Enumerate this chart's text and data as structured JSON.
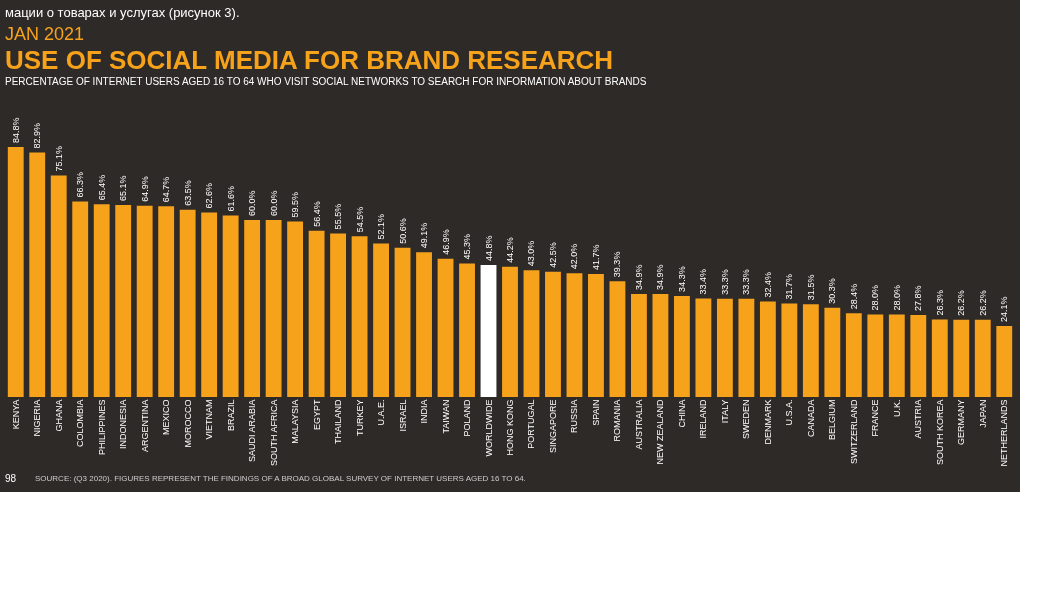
{
  "chart_data": {
    "type": "bar",
    "title": "USE OF SOCIAL MEDIA FOR BRAND RESEARCH",
    "subtitle": "PERCENTAGE OF INTERNET USERS AGED 16 TO 64 WHO VISIT SOCIAL NETWORKS TO SEARCH FOR INFORMATION ABOUT BRANDS",
    "categories": [
      "KENYA",
      "NIGERIA",
      "GHANA",
      "COLOMBIA",
      "PHILIPPINES",
      "INDONESIA",
      "ARGENTINA",
      "MEXICO",
      "MOROCCO",
      "VIETNAM",
      "BRAZIL",
      "SAUDI ARABIA",
      "SOUTH AFRICA",
      "MALAYSIA",
      "EGYPT",
      "THAILAND",
      "TURKEY",
      "U.A.E.",
      "ISRAEL",
      "INDIA",
      "TAIWAN",
      "POLAND",
      "WORLDWIDE",
      "HONG KONG",
      "PORTUGAL",
      "SINGAPORE",
      "RUSSIA",
      "SPAIN",
      "ROMANIA",
      "AUSTRALIA",
      "NEW ZEALAND",
      "CHINA",
      "IRELAND",
      "ITALY",
      "SWEDEN",
      "DENMARK",
      "U.S.A.",
      "CANADA",
      "BELGIUM",
      "SWITZERLAND",
      "FRANCE",
      "U.K.",
      "AUSTRIA",
      "SOUTH KOREA",
      "GERMANY",
      "JAPAN",
      "NETHERLANDS"
    ],
    "values": [
      84.8,
      82.9,
      75.1,
      66.3,
      65.4,
      65.1,
      64.9,
      64.7,
      63.5,
      62.6,
      61.6,
      60.0,
      60.0,
      59.5,
      56.4,
      55.5,
      54.5,
      52.1,
      50.6,
      49.1,
      46.9,
      45.3,
      44.8,
      44.2,
      43.0,
      42.5,
      42.0,
      41.7,
      39.3,
      34.9,
      34.9,
      34.3,
      33.4,
      33.3,
      33.3,
      32.4,
      31.7,
      31.5,
      30.3,
      28.4,
      28.0,
      28.0,
      27.8,
      26.3,
      26.2,
      26.2,
      24.1
    ],
    "value_labels": [
      "84.8%",
      "82.9%",
      "75.1%",
      "66.3%",
      "65.4%",
      "65.1%",
      "64.9%",
      "64.7%",
      "63.5%",
      "62.6%",
      "61.6%",
      "60.0%",
      "60.0%",
      "59.5%",
      "56.4%",
      "55.5%",
      "54.5%",
      "52.1%",
      "50.6%",
      "49.1%",
      "46.9%",
      "45.3%",
      "44.8%",
      "44.2%",
      "43.0%",
      "42.5%",
      "42.0%",
      "41.7%",
      "39.3%",
      "34.9%",
      "34.9%",
      "34.3%",
      "33.4%",
      "33.3%",
      "33.3%",
      "32.4%",
      "31.7%",
      "31.5%",
      "30.3%",
      "28.4%",
      "28.0%",
      "28.0%",
      "27.8%",
      "26.3%",
      "26.2%",
      "26.2%",
      "24.1%"
    ],
    "colors": [
      "#f7a21b",
      "#f7a21b",
      "#f7a21b",
      "#f7a21b",
      "#f7a21b",
      "#f7a21b",
      "#f7a21b",
      "#f7a21b",
      "#f7a21b",
      "#f7a21b",
      "#f7a21b",
      "#f7a21b",
      "#f7a21b",
      "#f7a21b",
      "#f7a21b",
      "#f7a21b",
      "#f7a21b",
      "#f7a21b",
      "#f7a21b",
      "#f7a21b",
      "#f7a21b",
      "#f7a21b",
      "#ffffff",
      "#f7a21b",
      "#f7a21b",
      "#f7a21b",
      "#f7a21b",
      "#f7a21b",
      "#f7a21b",
      "#f7a21b",
      "#f7a21b",
      "#f7a21b",
      "#f7a21b",
      "#f7a21b",
      "#f7a21b",
      "#f7a21b",
      "#f7a21b",
      "#f7a21b",
      "#f7a21b",
      "#f7a21b",
      "#f7a21b",
      "#f7a21b",
      "#f7a21b",
      "#f7a21b",
      "#f7a21b",
      "#f7a21b",
      "#f7a21b"
    ],
    "annotations": [
      "мации о товарах и услугах (рисунок 3).",
      "JAN 2021",
      "98",
      "SOURCE: (Q3 2020). FIGURES REPRESENT THE FINDINGS OF A BROAD GLOBAL SURVEY OF INTERNET USERS AGED 16 TO 64."
    ],
    "grid": false
  }
}
